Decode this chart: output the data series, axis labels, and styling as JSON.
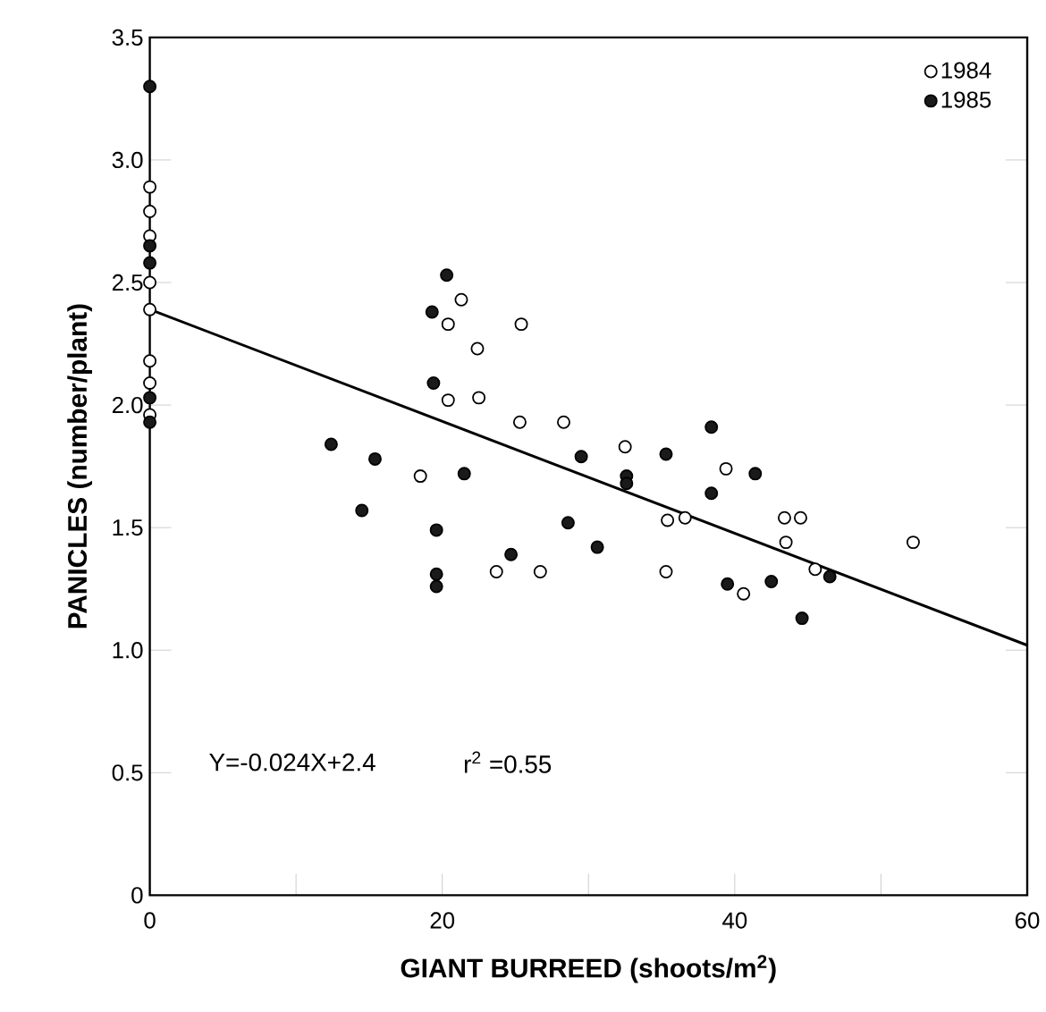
{
  "chart_data": {
    "type": "scatter",
    "xlabel": "GIANT BURREED (shoots/m$^{2}$)",
    "ylabel": "PANICLES (number/plant)",
    "xlim": [
      0,
      60
    ],
    "ylim": [
      0,
      3.5
    ],
    "xticks": [
      0,
      {
        "value": 10,
        "label": null
      },
      20,
      {
        "value": 30,
        "label": null
      },
      40,
      {
        "value": 50,
        "label": null
      },
      60
    ],
    "yticks": [
      0,
      0.5,
      {
        "value": 1,
        "label": "1.0"
      },
      1.5,
      {
        "value": 2,
        "label": "2.0"
      },
      2.5,
      {
        "value": 3,
        "label": "3.0"
      },
      3.5
    ],
    "legend": "top right",
    "grid": false,
    "annotations": [
      "Y=-0.024X+2.4",
      "r$^{2}$ =0.55"
    ],
    "series": [
      {
        "name": "1984",
        "color": "#ffffff",
        "marker": "circle",
        "x": [
          0,
          0,
          0,
          0,
          0,
          0,
          0,
          0,
          21.3,
          20.4,
          25.4,
          22.4,
          20.4,
          22.5,
          25.3,
          28.3,
          32.5,
          18.5,
          35.4,
          23.7,
          26.7,
          35.3,
          36.6,
          39.4,
          43.4,
          44.5,
          43.5,
          52.2,
          45.5,
          40.6
        ],
        "values": [
          2.89,
          2.79,
          2.69,
          2.5,
          2.39,
          2.18,
          2.09,
          1.96,
          2.43,
          2.33,
          2.33,
          2.23,
          2.02,
          2.03,
          1.93,
          1.93,
          1.83,
          1.71,
          1.53,
          1.32,
          1.32,
          1.32,
          1.54,
          1.74,
          1.54,
          1.54,
          1.44,
          1.44,
          1.33,
          1.23
        ]
      },
      {
        "name": "1985",
        "color": "#1a1a1a",
        "marker": "circle",
        "x": [
          0,
          0,
          0,
          0,
          0,
          20.3,
          19.3,
          19.4,
          12.4,
          29.5,
          35.3,
          15.4,
          21.5,
          32.6,
          32.6,
          14.5,
          28.6,
          19.6,
          30.6,
          24.7,
          19.6,
          19.6,
          38.4,
          41.4,
          38.4,
          46.5,
          39.5,
          42.5,
          44.6
        ],
        "values": [
          3.3,
          2.65,
          2.58,
          2.03,
          1.93,
          2.53,
          2.38,
          2.09,
          1.84,
          1.79,
          1.8,
          1.78,
          1.72,
          1.71,
          1.68,
          1.57,
          1.52,
          1.49,
          1.42,
          1.39,
          1.31,
          1.26,
          1.91,
          1.72,
          1.64,
          1.3,
          1.27,
          1.28,
          1.13
        ]
      },
      {
        "type": "line",
        "color": "#000000",
        "x": [
          0,
          60
        ],
        "values": [
          2.39,
          1.02
        ],
        "marker": "none",
        "line_style": "solid"
      }
    ]
  }
}
